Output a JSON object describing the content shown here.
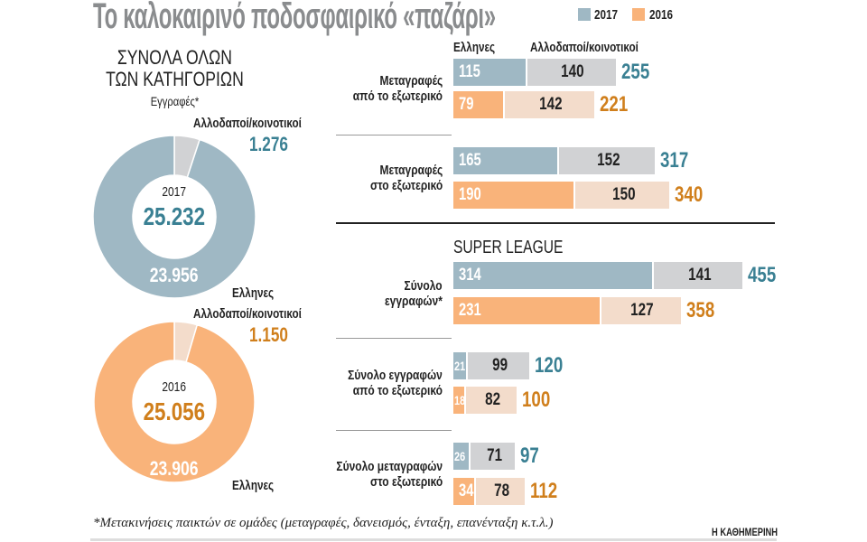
{
  "title": "Το καλοκαιρινό ποδοσφαιρικό «παζάρι»",
  "legend": [
    {
      "label": "2017",
      "color": "#9fb8c4"
    },
    {
      "label": "2016",
      "color": "#f9b37a"
    }
  ],
  "colors": {
    "greek_2017": "#9fb8c4",
    "foreign_2017": "#d1d2d4",
    "total_2017_text": "#3a8093",
    "greek_2016": "#f9b37a",
    "foreign_2016": "#f3dccb",
    "total_2016_text": "#d07f1c"
  },
  "left": {
    "heading_line1": "ΣΥΝΟΛΑ ΟΛΩΝ",
    "heading_line2": "ΤΩΝ ΚΑΤΗΓΟΡΙΩΝ",
    "subheading": "Εγγραφές*"
  },
  "chart_data": [
    {
      "type": "pie",
      "variant": "donut",
      "center_label": "2017",
      "total": "25.232",
      "slices": [
        {
          "label": "Ελληνες",
          "value": 23956,
          "display": "23.956"
        },
        {
          "label": "Αλλοδαποί/κοινοτικοί",
          "value": 1276,
          "display": "1.276"
        }
      ]
    },
    {
      "type": "pie",
      "variant": "donut",
      "center_label": "2016",
      "total": "25.056",
      "slices": [
        {
          "label": "Ελληνες",
          "value": 23906,
          "display": "23.906"
        },
        {
          "label": "Αλλοδαποί/κοινοτικοί",
          "value": 1150,
          "display": "1.150"
        }
      ]
    },
    {
      "type": "bar",
      "orientation": "horizontal",
      "stacked": true,
      "stack_labels": [
        "Ελληνες",
        "Αλλοδαποί/κοινοτικοί"
      ],
      "section_heading": "SUPER LEAGUE",
      "groups": [
        {
          "label_line1": "Μεταγραφές",
          "label_line2": "από το εξωτερικό",
          "section": "all",
          "rows": [
            {
              "year": "2017",
              "greek": 115,
              "foreign": 140,
              "total": 255
            },
            {
              "year": "2016",
              "greek": 79,
              "foreign": 142,
              "total": 221
            }
          ]
        },
        {
          "label_line1": "Μεταγραφές",
          "label_line2": "στο εξωτερικό",
          "section": "all",
          "rows": [
            {
              "year": "2017",
              "greek": 165,
              "foreign": 152,
              "total": 317
            },
            {
              "year": "2016",
              "greek": 190,
              "foreign": 150,
              "total": 340
            }
          ]
        },
        {
          "label_line1": "Σύνολο",
          "label_line2": "εγγραφών*",
          "section": "super_league",
          "rows": [
            {
              "year": "2017",
              "greek": 314,
              "foreign": 141,
              "total": 455
            },
            {
              "year": "2016",
              "greek": 231,
              "foreign": 127,
              "total": 358
            }
          ]
        },
        {
          "label_line1": "Σύνολο εγγραφών",
          "label_line2": "από το εξωτερικό",
          "section": "super_league",
          "rows": [
            {
              "year": "2017",
              "greek": 21,
              "foreign": 99,
              "total": 120
            },
            {
              "year": "2016",
              "greek": 18,
              "foreign": 82,
              "total": 100
            }
          ]
        },
        {
          "label_line1": "Σύνολο μεταγραφών",
          "label_line2": "στο εξωτερικό",
          "section": "super_league",
          "rows": [
            {
              "year": "2017",
              "greek": 26,
              "foreign": 71,
              "total": 97
            },
            {
              "year": "2016",
              "greek": 34,
              "foreign": 78,
              "total": 112
            }
          ]
        }
      ]
    }
  ],
  "footnote": "*Μετακινήσεις παικτών σε ομάδες (μεταγραφές, δανεισμός, ένταξη, επανένταξη κ.τ.λ.)",
  "brand": "Η ΚΑΘΗΜΕΡΙΝΗ"
}
